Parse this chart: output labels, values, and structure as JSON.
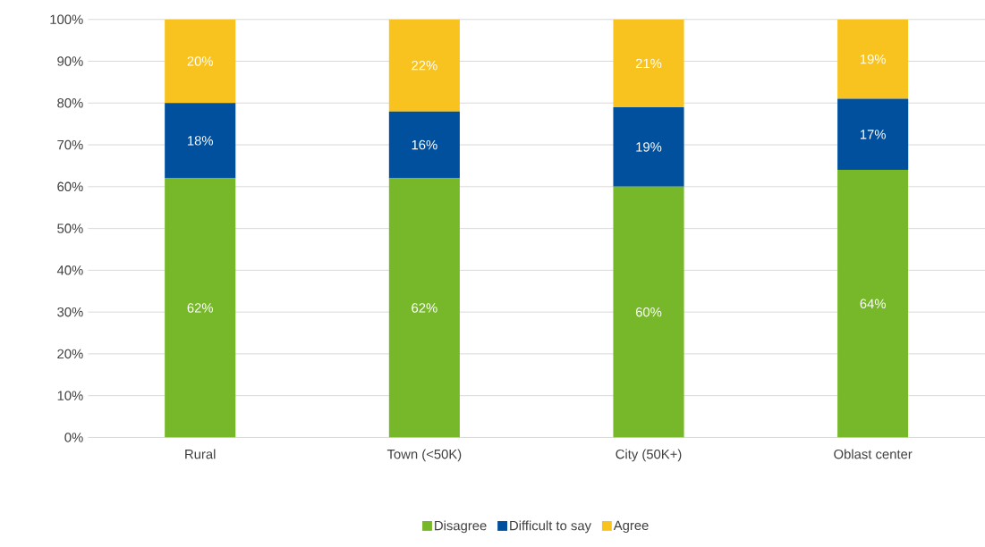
{
  "chart_data": {
    "type": "bar",
    "stacked": true,
    "categories": [
      "Rural",
      "Town (<50K)",
      "City (50K+)",
      "Oblast center"
    ],
    "series": [
      {
        "name": "Disagree",
        "color": "#76b82a",
        "values": [
          62,
          62,
          60,
          64
        ],
        "value_labels": [
          "62%",
          "62%",
          "60%",
          "64%"
        ]
      },
      {
        "name": "Difficult to say",
        "color": "#00509e",
        "values": [
          18,
          16,
          19,
          17
        ],
        "value_labels": [
          "18%",
          "16%",
          "19%",
          "17%"
        ]
      },
      {
        "name": "Agree",
        "color": "#f9c31f",
        "values": [
          20,
          22,
          21,
          19
        ],
        "value_labels": [
          "20%",
          "22%",
          "21%",
          "19%"
        ]
      }
    ],
    "ylim": [
      0,
      100
    ],
    "yticks": [
      {
        "value": 0,
        "label": "0%"
      },
      {
        "value": 10,
        "label": "10%"
      },
      {
        "value": 20,
        "label": "20%"
      },
      {
        "value": 30,
        "label": "30%"
      },
      {
        "value": 40,
        "label": "40%"
      },
      {
        "value": 50,
        "label": "50%"
      },
      {
        "value": 60,
        "label": "60%"
      },
      {
        "value": 70,
        "label": "70%"
      },
      {
        "value": 80,
        "label": "80%"
      },
      {
        "value": 90,
        "label": "90%"
      },
      {
        "value": 100,
        "label": "100%"
      }
    ],
    "grid": "y",
    "legend": "bottom"
  }
}
